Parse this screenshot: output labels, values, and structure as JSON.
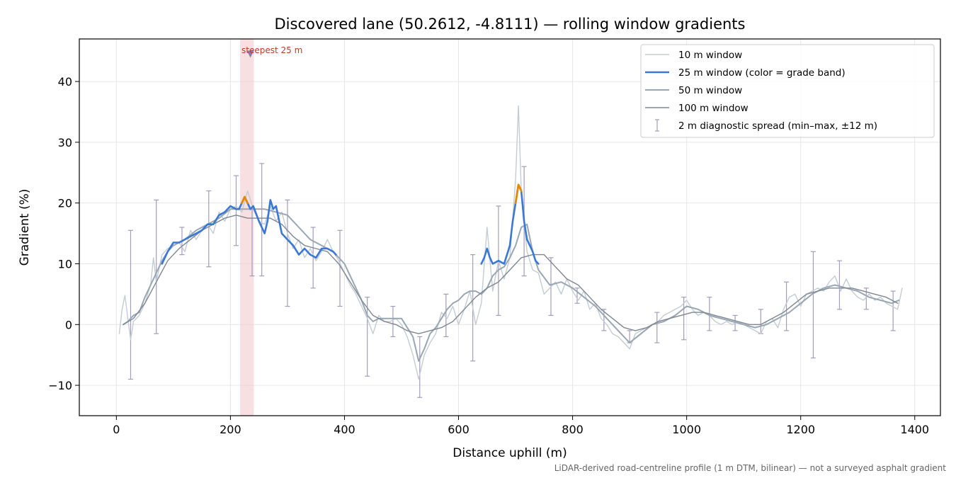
{
  "chart_data": {
    "type": "line",
    "title": "Discovered lane (50.2612, -4.8111) — rolling window gradients",
    "xlabel": "Distance uphill (m)",
    "ylabel": "Gradient (%)",
    "xlim": [
      -65,
      1445
    ],
    "ylim": [
      -15,
      47
    ],
    "xticks": [
      0,
      200,
      400,
      600,
      800,
      1000,
      1200,
      1400
    ],
    "yticks": [
      -10,
      0,
      10,
      20,
      30,
      40
    ],
    "xtick_labels": [
      "0",
      "200",
      "400",
      "600",
      "800",
      "1000",
      "1200",
      "1400"
    ],
    "ytick_labels": [
      "−10",
      "0",
      "10",
      "20",
      "30",
      "40"
    ],
    "grid": true,
    "legend_position": "top-right",
    "colors": {
      "w10": "#c3ccd4",
      "w25": "#3a78d6",
      "w25_steep": "#e08a00",
      "w50": "#99a6b3",
      "w100": "#7f8791",
      "errorbar": "#a39cbc",
      "highlight": "#f2c9cf",
      "annotation": "#c0392b"
    },
    "highlight_band": {
      "x0": 217,
      "x1": 241,
      "label": "steepest 25 m",
      "marker_x": 235,
      "marker_y": 44.5
    },
    "series": [
      {
        "name": "10 m window",
        "x": [
          5,
          10,
          15,
          20,
          25,
          30,
          40,
          50,
          60,
          65,
          70,
          80,
          90,
          100,
          110,
          120,
          130,
          140,
          150,
          160,
          170,
          180,
          190,
          200,
          210,
          220,
          230,
          240,
          250,
          260,
          270,
          280,
          290,
          300,
          310,
          320,
          330,
          340,
          350,
          360,
          370,
          380,
          390,
          400,
          410,
          420,
          430,
          440,
          450,
          460,
          470,
          480,
          490,
          500,
          510,
          520,
          530,
          540,
          550,
          560,
          570,
          580,
          590,
          600,
          610,
          620,
          630,
          640,
          650,
          660,
          670,
          680,
          690,
          700,
          705,
          710,
          720,
          730,
          740,
          750,
          760,
          770,
          780,
          790,
          800,
          810,
          820,
          830,
          840,
          850,
          860,
          870,
          880,
          890,
          900,
          910,
          920,
          930,
          940,
          950,
          960,
          970,
          980,
          990,
          1000,
          1010,
          1020,
          1030,
          1040,
          1050,
          1060,
          1070,
          1080,
          1090,
          1100,
          1110,
          1120,
          1130,
          1140,
          1150,
          1160,
          1170,
          1180,
          1190,
          1200,
          1210,
          1220,
          1230,
          1240,
          1250,
          1260,
          1270,
          1280,
          1290,
          1300,
          1310,
          1320,
          1330,
          1340,
          1350,
          1360,
          1370,
          1378
        ],
        "values": [
          -1.5,
          2.5,
          4.8,
          1.0,
          -2.5,
          0.5,
          1.5,
          3.5,
          6.5,
          11.0,
          7.0,
          11.5,
          12.5,
          13.0,
          13.5,
          12.0,
          15.5,
          14.0,
          15.5,
          16.5,
          15.0,
          18.5,
          17.0,
          19.0,
          19.5,
          18.5,
          22.0,
          19.0,
          17.0,
          16.5,
          19.5,
          17.0,
          18.5,
          15.0,
          12.5,
          14.0,
          11.0,
          12.5,
          10.5,
          12.0,
          14.0,
          12.0,
          10.5,
          8.5,
          6.5,
          5.0,
          3.0,
          1.0,
          -1.5,
          1.5,
          0.5,
          0.5,
          1.0,
          0.0,
          -2.0,
          -5.0,
          -9.0,
          -5.0,
          -3.0,
          -1.5,
          2.0,
          1.0,
          3.0,
          0.0,
          2.5,
          5.5,
          0.0,
          3.5,
          16.0,
          5.5,
          10.5,
          7.5,
          11.0,
          24.0,
          36.0,
          22.0,
          12.0,
          9.0,
          8.5,
          5.0,
          6.0,
          7.0,
          5.0,
          7.5,
          5.5,
          4.0,
          5.5,
          2.5,
          3.5,
          1.0,
          0.0,
          -1.5,
          -2.0,
          -3.0,
          -4.0,
          -1.5,
          -1.0,
          -0.5,
          0.0,
          0.5,
          1.5,
          2.0,
          2.5,
          3.0,
          4.0,
          2.5,
          1.5,
          2.0,
          1.5,
          0.5,
          0.0,
          0.5,
          0.0,
          0.5,
          0.0,
          -0.5,
          -1.0,
          -1.5,
          0.5,
          1.0,
          -0.5,
          2.5,
          4.5,
          5.0,
          3.0,
          5.0,
          5.5,
          6.0,
          5.5,
          7.0,
          8.0,
          5.5,
          7.5,
          5.5,
          4.5,
          4.0,
          5.0,
          4.0,
          4.5,
          3.5,
          3.0,
          2.5,
          6.0
        ]
      },
      {
        "name": "25 m window (color = grade band)",
        "x": [
          80,
          90,
          100,
          110,
          120,
          130,
          140,
          150,
          160,
          170,
          180,
          190,
          200,
          210,
          215,
          220,
          225,
          230,
          235,
          240,
          250,
          260,
          265,
          270,
          275,
          280,
          290,
          300,
          310,
          320,
          330,
          340,
          350,
          360,
          370,
          380,
          385,
          640,
          645,
          650,
          655,
          660,
          670,
          680,
          690,
          695,
          700,
          705,
          710,
          715,
          720,
          725,
          730,
          735,
          740
        ],
        "values": [
          10.0,
          12.0,
          13.5,
          13.5,
          14.0,
          14.5,
          15.0,
          15.5,
          16.5,
          16.5,
          18.0,
          18.5,
          19.5,
          19.0,
          19.0,
          20.0,
          21.0,
          20.0,
          19.0,
          19.5,
          17.0,
          15.0,
          17.0,
          20.5,
          19.0,
          19.5,
          15.0,
          14.0,
          13.0,
          11.5,
          12.5,
          11.5,
          11.0,
          12.5,
          12.5,
          12.0,
          11.5,
          10.0,
          11.0,
          12.5,
          11.0,
          10.0,
          10.5,
          10.0,
          13.0,
          17.0,
          20.0,
          23.0,
          22.0,
          17.0,
          14.0,
          13.0,
          12.0,
          10.5,
          10.0
        ],
        "steep_segments": [
          [
            218,
            232
          ],
          [
            697,
            712
          ]
        ]
      },
      {
        "name": "50 m window",
        "x": [
          12,
          20,
          30,
          40,
          50,
          60,
          70,
          80,
          90,
          100,
          120,
          140,
          160,
          180,
          200,
          220,
          240,
          260,
          280,
          300,
          320,
          340,
          360,
          380,
          400,
          410,
          420,
          430,
          440,
          450,
          460,
          480,
          500,
          520,
          530,
          540,
          550,
          560,
          570,
          580,
          590,
          600,
          610,
          620,
          630,
          640,
          650,
          660,
          670,
          680,
          690,
          700,
          710,
          720,
          730,
          740,
          760,
          780,
          800,
          820,
          840,
          860,
          880,
          900,
          920,
          940,
          960,
          980,
          1000,
          1020,
          1040,
          1060,
          1080,
          1100,
          1120,
          1140,
          1160,
          1180,
          1200,
          1220,
          1240,
          1260,
          1280,
          1300,
          1320,
          1340,
          1360,
          1372
        ],
        "values": [
          0.0,
          0.5,
          1.5,
          2.0,
          4.5,
          6.5,
          8.5,
          10.5,
          12.0,
          13.0,
          14.0,
          15.5,
          16.5,
          17.5,
          19.0,
          19.0,
          19.0,
          19.0,
          18.5,
          18.0,
          16.0,
          14.0,
          13.0,
          12.0,
          10.0,
          8.0,
          6.0,
          4.0,
          1.5,
          0.5,
          1.0,
          1.0,
          1.0,
          -2.0,
          -6.0,
          -4.0,
          -1.5,
          -0.5,
          1.0,
          2.5,
          3.5,
          4.0,
          5.0,
          5.5,
          5.5,
          5.0,
          6.0,
          8.0,
          9.0,
          9.5,
          11.0,
          13.0,
          16.0,
          16.5,
          12.0,
          9.0,
          6.5,
          7.0,
          6.0,
          4.5,
          3.0,
          1.0,
          -1.0,
          -3.0,
          -1.5,
          0.0,
          0.5,
          1.5,
          3.0,
          2.5,
          1.5,
          1.0,
          0.5,
          0.0,
          -0.5,
          0.0,
          1.0,
          2.0,
          3.5,
          5.0,
          6.0,
          6.5,
          6.0,
          5.5,
          4.5,
          4.0,
          3.5,
          4.0
        ]
      },
      {
        "name": "100 m window",
        "x": [
          12,
          30,
          50,
          70,
          90,
          110,
          130,
          150,
          170,
          190,
          210,
          230,
          250,
          270,
          290,
          310,
          330,
          350,
          370,
          390,
          410,
          430,
          450,
          470,
          490,
          510,
          530,
          550,
          570,
          590,
          610,
          630,
          650,
          670,
          690,
          710,
          730,
          750,
          770,
          790,
          810,
          830,
          850,
          870,
          890,
          910,
          930,
          950,
          970,
          990,
          1010,
          1030,
          1050,
          1070,
          1090,
          1110,
          1130,
          1150,
          1170,
          1190,
          1210,
          1230,
          1250,
          1270,
          1290,
          1310,
          1330,
          1350,
          1370
        ],
        "values": [
          0.0,
          1.0,
          3.5,
          7.0,
          10.5,
          12.5,
          14.0,
          15.5,
          16.5,
          17.5,
          18.0,
          17.5,
          17.5,
          17.5,
          16.5,
          14.5,
          13.0,
          12.5,
          12.0,
          10.0,
          7.0,
          4.0,
          1.5,
          0.5,
          0.0,
          -1.0,
          -1.5,
          -1.0,
          -0.5,
          0.5,
          2.5,
          4.5,
          6.0,
          7.0,
          9.0,
          11.0,
          11.5,
          11.5,
          9.5,
          7.5,
          6.5,
          4.5,
          2.5,
          1.0,
          -0.5,
          -1.0,
          -0.5,
          0.5,
          1.0,
          1.5,
          2.0,
          2.0,
          1.5,
          1.0,
          0.5,
          0.0,
          0.0,
          1.0,
          2.0,
          3.5,
          5.0,
          5.5,
          6.0,
          6.0,
          6.0,
          5.5,
          5.0,
          4.5,
          3.5
        ]
      },
      {
        "name": "2 m diagnostic spread (min–max, ±12 m)",
        "x": [
          25,
          70,
          115,
          162,
          210,
          238,
          255,
          300,
          345,
          392,
          440,
          485,
          532,
          578,
          625,
          670,
          715,
          762,
          808,
          855,
          900,
          948,
          995,
          1040,
          1085,
          1130,
          1175,
          1222,
          1268,
          1315,
          1362
        ],
        "min": [
          -9,
          -1.5,
          11.5,
          9.5,
          13,
          8,
          8,
          3,
          6,
          3,
          -8.5,
          -2,
          -12,
          -2,
          -6,
          1.5,
          8,
          1.5,
          3.5,
          -1,
          -3,
          -3,
          -2.5,
          -1,
          -1,
          -1.5,
          -1,
          -5.5,
          2.5,
          2.5,
          -1
        ],
        "max": [
          15.5,
          20.5,
          16,
          22,
          24.5,
          19,
          26.5,
          20.5,
          16,
          15.5,
          4.5,
          3,
          -2,
          5,
          11.5,
          19.5,
          26,
          11,
          6,
          2.5,
          -1,
          2,
          4.5,
          4.5,
          1.5,
          2.5,
          7,
          12,
          10.5,
          6,
          5.5
        ]
      }
    ],
    "annotations": [
      {
        "text": "steepest 25 m"
      }
    ],
    "footnote": "LiDAR-derived road-centreline profile (1 m DTM, bilinear) — not a surveyed asphalt gradient"
  }
}
